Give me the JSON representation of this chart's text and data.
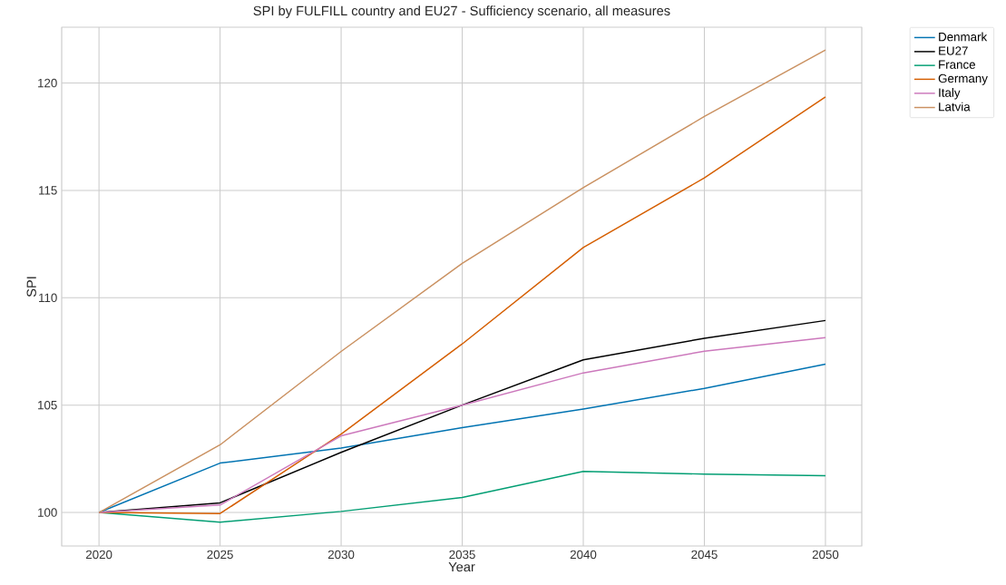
{
  "chart_data": {
    "type": "line",
    "title": "SPI by FULFILL country and EU27 - Sufficiency scenario, all measures",
    "xlabel": "Year",
    "ylabel": "SPI",
    "x": [
      2020,
      2025,
      2030,
      2035,
      2040,
      2045,
      2050
    ],
    "series": [
      {
        "name": "Denmark",
        "color": "#0173b2",
        "values": [
          100,
          102.3,
          103.0,
          103.95,
          104.82,
          105.78,
          106.91
        ]
      },
      {
        "name": "EU27",
        "color": "#000000",
        "values": [
          100,
          100.45,
          102.8,
          105.0,
          107.11,
          108.11,
          108.94
        ]
      },
      {
        "name": "France",
        "color": "#029e73",
        "values": [
          100,
          99.55,
          100.05,
          100.7,
          101.91,
          101.79,
          101.71
        ]
      },
      {
        "name": "Germany",
        "color": "#d55e00",
        "values": [
          100,
          99.95,
          103.65,
          107.85,
          112.34,
          115.58,
          119.35
        ]
      },
      {
        "name": "Italy",
        "color": "#cc78bc",
        "values": [
          100,
          100.35,
          103.57,
          105.0,
          106.5,
          107.51,
          108.14
        ]
      },
      {
        "name": "Latvia",
        "color": "#ca9161",
        "values": [
          100,
          103.15,
          107.5,
          111.6,
          115.13,
          118.44,
          121.54
        ]
      }
    ],
    "xlim": [
      2018.46,
      2051.5
    ],
    "ylim": [
      98.44,
      122.6
    ],
    "xticks": [
      2020,
      2025,
      2030,
      2035,
      2040,
      2045,
      2050
    ],
    "yticks": [
      100,
      105,
      110,
      115,
      120
    ],
    "grid": true,
    "legend": "top right",
    "marker": "none",
    "line_style": "solid"
  }
}
